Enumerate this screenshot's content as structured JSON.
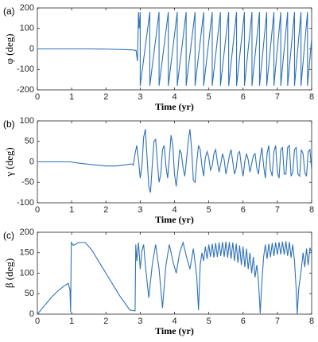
{
  "chart_data": [
    {
      "type": "line",
      "panel_label": "(a)",
      "xlabel": "Time (yr)",
      "ylabel": "φ (deg)",
      "color": "#2f72b8",
      "xlim": [
        0,
        8
      ],
      "xticks": [
        0,
        1,
        2,
        3,
        4,
        5,
        6,
        7,
        8
      ],
      "ylim": [
        -200,
        200
      ],
      "yticks": [
        -200,
        -100,
        0,
        100,
        200
      ],
      "x": [
        0,
        0.5,
        1,
        1.5,
        2,
        2.5,
        2.8,
        2.88,
        2.92,
        2.95,
        2.97,
        3.0,
        3.0,
        3.28,
        3.28,
        3.55,
        3.55,
        3.82,
        3.82,
        4.08,
        4.08,
        4.34,
        4.34,
        4.6,
        4.6,
        4.85,
        4.85,
        5.1,
        5.1,
        5.34,
        5.34,
        5.58,
        5.58,
        5.81,
        5.81,
        6.04,
        6.04,
        6.26,
        6.26,
        6.48,
        6.48,
        6.69,
        6.69,
        6.9,
        6.9,
        7.1,
        7.1,
        7.3,
        7.3,
        7.5,
        7.5,
        7.69,
        7.69,
        7.88,
        7.88,
        8.0
      ],
      "values": [
        0,
        0,
        0,
        0,
        -1,
        -3,
        -5,
        -8,
        -60,
        180,
        100,
        180,
        -180,
        180,
        -180,
        180,
        -180,
        180,
        -180,
        180,
        -180,
        180,
        -180,
        180,
        -180,
        180,
        -180,
        180,
        -180,
        180,
        -180,
        180,
        -180,
        180,
        -180,
        180,
        -180,
        180,
        -180,
        180,
        -180,
        180,
        -180,
        180,
        -180,
        180,
        -180,
        180,
        -180,
        180,
        -180,
        180,
        -180,
        180,
        -180,
        50
      ]
    },
    {
      "type": "line",
      "panel_label": "(b)",
      "xlabel": "Time (yr)",
      "ylabel": "γ (deg)",
      "color": "#2f72b8",
      "xlim": [
        0,
        8
      ],
      "xticks": [
        0,
        1,
        2,
        3,
        4,
        5,
        6,
        7,
        8
      ],
      "ylim": [
        -100,
        100
      ],
      "yticks": [
        -100,
        -50,
        0,
        50,
        100
      ],
      "x": [
        0,
        0.5,
        0.95,
        1.2,
        1.5,
        2.0,
        2.3,
        2.6,
        2.75,
        2.8,
        2.85,
        2.9,
        2.95,
        3.0,
        3.05,
        3.1,
        3.15,
        3.2,
        3.25,
        3.3,
        3.35,
        3.4,
        3.45,
        3.5,
        3.55,
        3.6,
        3.65,
        3.7,
        3.75,
        3.8,
        3.85,
        3.9,
        3.95,
        4.0,
        4.05,
        4.1,
        4.15,
        4.2,
        4.25,
        4.3,
        4.35,
        4.4,
        4.45,
        4.5,
        4.55,
        4.6,
        4.65,
        4.7,
        4.75,
        4.8,
        4.85,
        4.9,
        4.95,
        5.0,
        5.05,
        5.1,
        5.15,
        5.2,
        5.25,
        5.3,
        5.35,
        5.4,
        5.45,
        5.5,
        5.55,
        5.6,
        5.65,
        5.7,
        5.75,
        5.8,
        5.85,
        5.9,
        5.95,
        6.0,
        6.05,
        6.1,
        6.15,
        6.2,
        6.25,
        6.3,
        6.35,
        6.4,
        6.45,
        6.5,
        6.55,
        6.6,
        6.65,
        6.7,
        6.75,
        6.8,
        6.85,
        6.9,
        6.95,
        7.0,
        7.05,
        7.1,
        7.15,
        7.2,
        7.25,
        7.3,
        7.35,
        7.4,
        7.45,
        7.5,
        7.55,
        7.6,
        7.65,
        7.7,
        7.75,
        7.8,
        7.85,
        7.9,
        7.95,
        8.0
      ],
      "values": [
        0,
        0,
        0,
        -3,
        -6,
        -10,
        -10,
        -7,
        -5,
        -8,
        20,
        40,
        5,
        -40,
        -10,
        60,
        80,
        10,
        -60,
        -75,
        -10,
        50,
        55,
        0,
        -50,
        -30,
        30,
        40,
        -10,
        -40,
        10,
        65,
        40,
        -30,
        -60,
        -20,
        30,
        20,
        -15,
        -35,
        5,
        50,
        80,
        30,
        -45,
        -50,
        0,
        40,
        30,
        -10,
        -35,
        10,
        25,
        10,
        -20,
        -10,
        20,
        30,
        0,
        -25,
        -5,
        20,
        5,
        -30,
        -10,
        15,
        30,
        0,
        -30,
        -15,
        20,
        25,
        -10,
        -35,
        0,
        20,
        5,
        -25,
        -5,
        15,
        20,
        -15,
        -30,
        10,
        35,
        -10,
        -40,
        20,
        40,
        -20,
        -35,
        25,
        40,
        -25,
        -40,
        30,
        35,
        -30,
        -30,
        35,
        40,
        -35,
        -25,
        30,
        35,
        -30,
        -35,
        30,
        20,
        -25,
        -35,
        25,
        30,
        -20
      ]
    },
    {
      "type": "line",
      "panel_label": "(c)",
      "xlabel": "Time (yr)",
      "ylabel": "β (deg)",
      "color": "#2f72b8",
      "xlim": [
        0,
        8
      ],
      "xticks": [
        0,
        1,
        2,
        3,
        4,
        5,
        6,
        7,
        8
      ],
      "ylim": [
        0,
        200
      ],
      "yticks": [
        0,
        50,
        100,
        150,
        200
      ],
      "x": [
        0,
        0.2,
        0.4,
        0.6,
        0.8,
        0.9,
        0.95,
        0.97,
        0.99,
        1.05,
        1.2,
        1.4,
        1.6,
        2.0,
        2.4,
        2.7,
        2.85,
        2.87,
        2.9,
        2.95,
        3.0,
        3.05,
        3.1,
        3.15,
        3.25,
        3.35,
        3.45,
        3.55,
        3.65,
        3.75,
        3.85,
        3.95,
        4.05,
        4.15,
        4.25,
        4.35,
        4.45,
        4.55,
        4.65,
        4.7,
        4.75,
        4.8,
        4.85,
        4.9,
        4.95,
        5.0,
        5.05,
        5.1,
        5.15,
        5.2,
        5.25,
        5.3,
        5.35,
        5.4,
        5.45,
        5.5,
        5.55,
        5.6,
        5.65,
        5.7,
        5.75,
        5.8,
        5.85,
        5.9,
        5.95,
        6.0,
        6.05,
        6.1,
        6.15,
        6.2,
        6.25,
        6.3,
        6.35,
        6.4,
        6.45,
        6.5,
        6.55,
        6.6,
        6.65,
        6.7,
        6.75,
        6.8,
        6.85,
        6.9,
        6.95,
        7.0,
        7.05,
        7.1,
        7.15,
        7.2,
        7.25,
        7.3,
        7.35,
        7.4,
        7.45,
        7.5,
        7.55,
        7.58,
        7.62,
        7.7,
        7.75,
        7.8,
        7.85,
        7.9,
        7.95,
        8.0
      ],
      "values": [
        0,
        20,
        40,
        57,
        70,
        75,
        60,
        5,
        175,
        168,
        175,
        175,
        155,
        100,
        45,
        10,
        8,
        170,
        130,
        175,
        110,
        155,
        170,
        120,
        40,
        120,
        170,
        110,
        15,
        120,
        170,
        130,
        100,
        150,
        175,
        140,
        110,
        160,
        90,
        10,
        120,
        150,
        130,
        165,
        135,
        170,
        140,
        172,
        138,
        174,
        140,
        175,
        142,
        176,
        140,
        177,
        138,
        176,
        135,
        175,
        130,
        172,
        125,
        168,
        120,
        165,
        115,
        160,
        110,
        150,
        100,
        140,
        90,
        120,
        80,
        2,
        80,
        140,
        170,
        135,
        172,
        140,
        174,
        142,
        175,
        145,
        176,
        146,
        177,
        145,
        178,
        142,
        176,
        138,
        170,
        130,
        60,
        0,
        60,
        110,
        150,
        115,
        160,
        120,
        162,
        150
      ]
    }
  ]
}
